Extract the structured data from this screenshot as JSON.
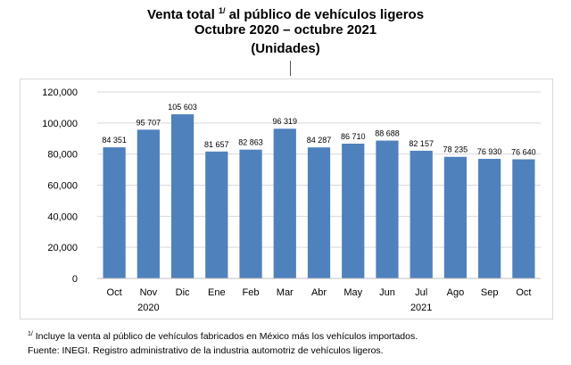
{
  "header": {
    "title_pre": "Venta total",
    "title_sup": "1/",
    "title_post": "al público de vehículos ligeros",
    "subtitle": "Octubre 2020 – octubre 2021",
    "units": "(Unidades)"
  },
  "footnotes": {
    "note_sup": "1/",
    "note_text": "Incluye la venta al público de vehículos fabricados en México más los vehículos importados.",
    "source": "Fuente: INEGI. Registro administrativo de la industria automotriz de vehículos ligeros."
  },
  "chart_data": {
    "type": "bar",
    "categories": [
      "Oct",
      "Nov",
      "Dic",
      "Ene",
      "Feb",
      "Mar",
      "Abr",
      "May",
      "Jun",
      "Jul",
      "Ago",
      "Sep",
      "Oct"
    ],
    "year_labels": [
      {
        "text": "2020",
        "category_index": 1
      },
      {
        "text": "2021",
        "category_index": 9
      }
    ],
    "values": [
      84351,
      95707,
      105603,
      81657,
      82863,
      96319,
      84287,
      86710,
      88688,
      82157,
      78235,
      76930,
      76640
    ],
    "data_labels": [
      "84 351",
      "95 707",
      "105 603",
      "81 657",
      "82 863",
      "96 319",
      "84 287",
      "86 710",
      "88 688",
      "82 157",
      "78 235",
      "76 930",
      "76 640"
    ],
    "yticks": [
      "0",
      "20,000",
      "40,000",
      "60,000",
      "80,000",
      "100,000",
      "120,000"
    ],
    "ylim": [
      0,
      120000
    ],
    "grid": true,
    "bar_color": "#4f81bd",
    "grid_color": "#d9d9d9"
  }
}
